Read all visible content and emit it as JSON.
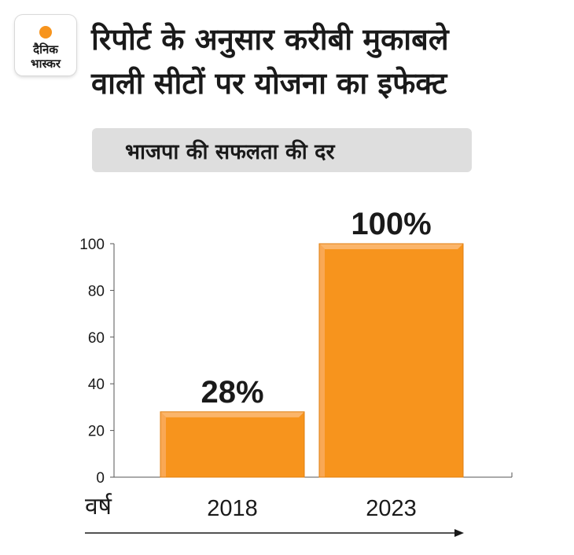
{
  "brand": {
    "logo_line1": "दैनिक",
    "logo_line2": "भास्कर",
    "accent": "#f7941d"
  },
  "header": {
    "title_line1": "रिपोर्ट के अनुसार करीबी मुकाबले",
    "title_line2": "वाली सीटों पर योजना का इफेक्ट",
    "subtitle": "भाजपा की सफलता की दर"
  },
  "chart_data": {
    "type": "bar",
    "title": "भाजपा की सफलता की दर",
    "categories": [
      "2018",
      "2023"
    ],
    "values": [
      28,
      100
    ],
    "value_labels": [
      "28%",
      "100%"
    ],
    "xlabel": "वर्ष",
    "ylabel": "",
    "ylim": [
      0,
      100
    ],
    "yticks": [
      0,
      20,
      40,
      60,
      80,
      100
    ],
    "ytick_labels": [
      "0",
      "20",
      "40",
      "60",
      "80",
      "100"
    ],
    "bar_color": "#f7941d",
    "grid": false
  }
}
